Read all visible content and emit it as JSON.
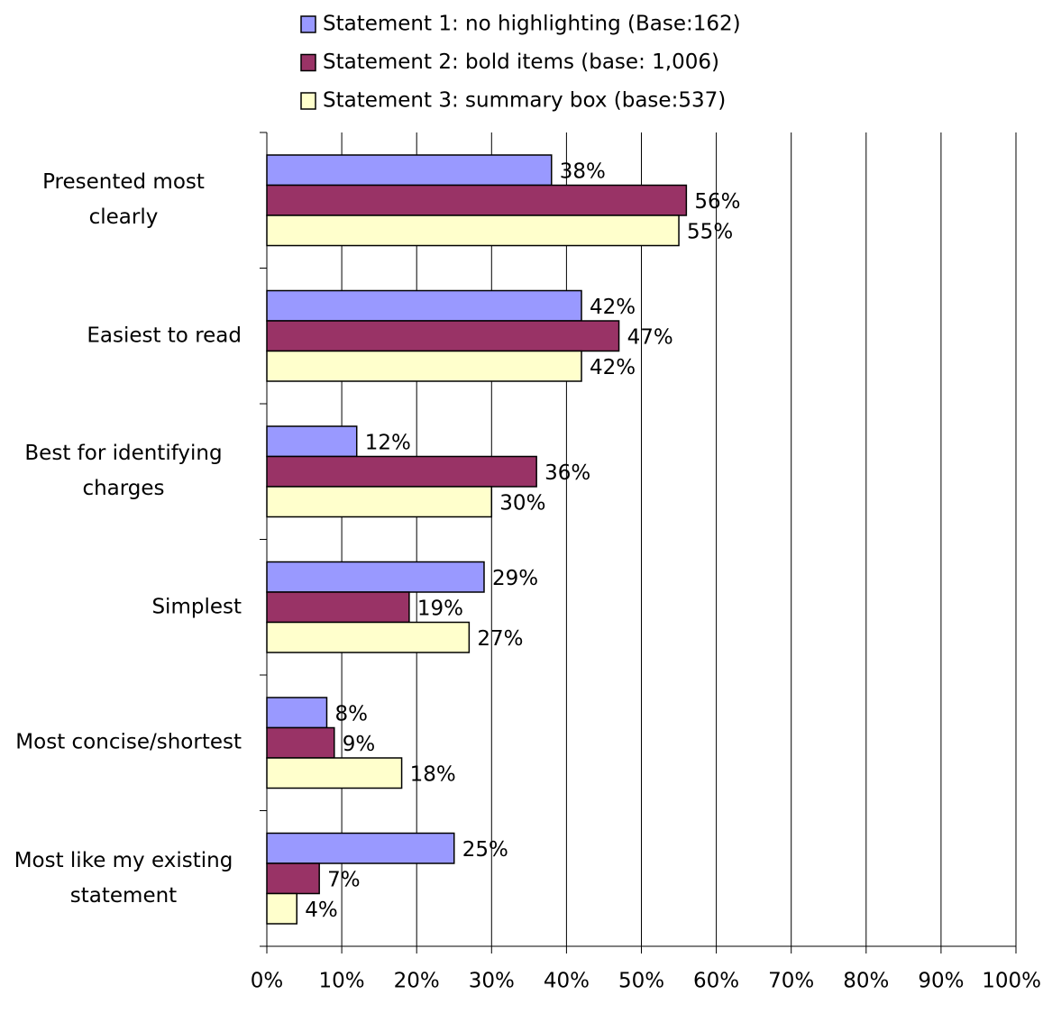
{
  "chart_data": {
    "type": "hbar",
    "categories": [
      "Presented most clearly",
      "Easiest to read",
      "Best for identifying charges",
      "Simplest",
      "Most concise/shortest",
      "Most like my existing statement"
    ],
    "series": [
      {
        "name": "Statement 1: no highlighting (Base:162)",
        "color": "#9999ff",
        "values": [
          38,
          42,
          12,
          29,
          8,
          25
        ],
        "value_labels": [
          "38%",
          "42%",
          "12%",
          "29%",
          "8%",
          "25%"
        ]
      },
      {
        "name": "Statement 2: bold items (base: 1,006)",
        "color": "#993366",
        "values": [
          56,
          47,
          36,
          19,
          9,
          7
        ],
        "value_labels": [
          "56%",
          "47%",
          "36%",
          "19%",
          "9%",
          "7%"
        ]
      },
      {
        "name": "Statement 3: summary box (base:537)",
        "color": "#ffffcc",
        "values": [
          55,
          42,
          30,
          27,
          18,
          4
        ],
        "value_labels": [
          "55%",
          "42%",
          "30%",
          "27%",
          "18%",
          "4%"
        ]
      }
    ],
    "xlim": [
      0,
      100
    ],
    "xticks": [
      {
        "value": 0,
        "label": "0%"
      },
      {
        "value": 10,
        "label": "10%"
      },
      {
        "value": 20,
        "label": "20%"
      },
      {
        "value": 30,
        "label": "30%"
      },
      {
        "value": 40,
        "label": "40%"
      },
      {
        "value": 50,
        "label": "50%"
      },
      {
        "value": 60,
        "label": "60%"
      },
      {
        "value": 70,
        "label": "70%"
      },
      {
        "value": 80,
        "label": "80%"
      },
      {
        "value": 90,
        "label": "90%"
      },
      {
        "value": 100,
        "label": "100%"
      }
    ],
    "grid": true,
    "legend": "top"
  }
}
